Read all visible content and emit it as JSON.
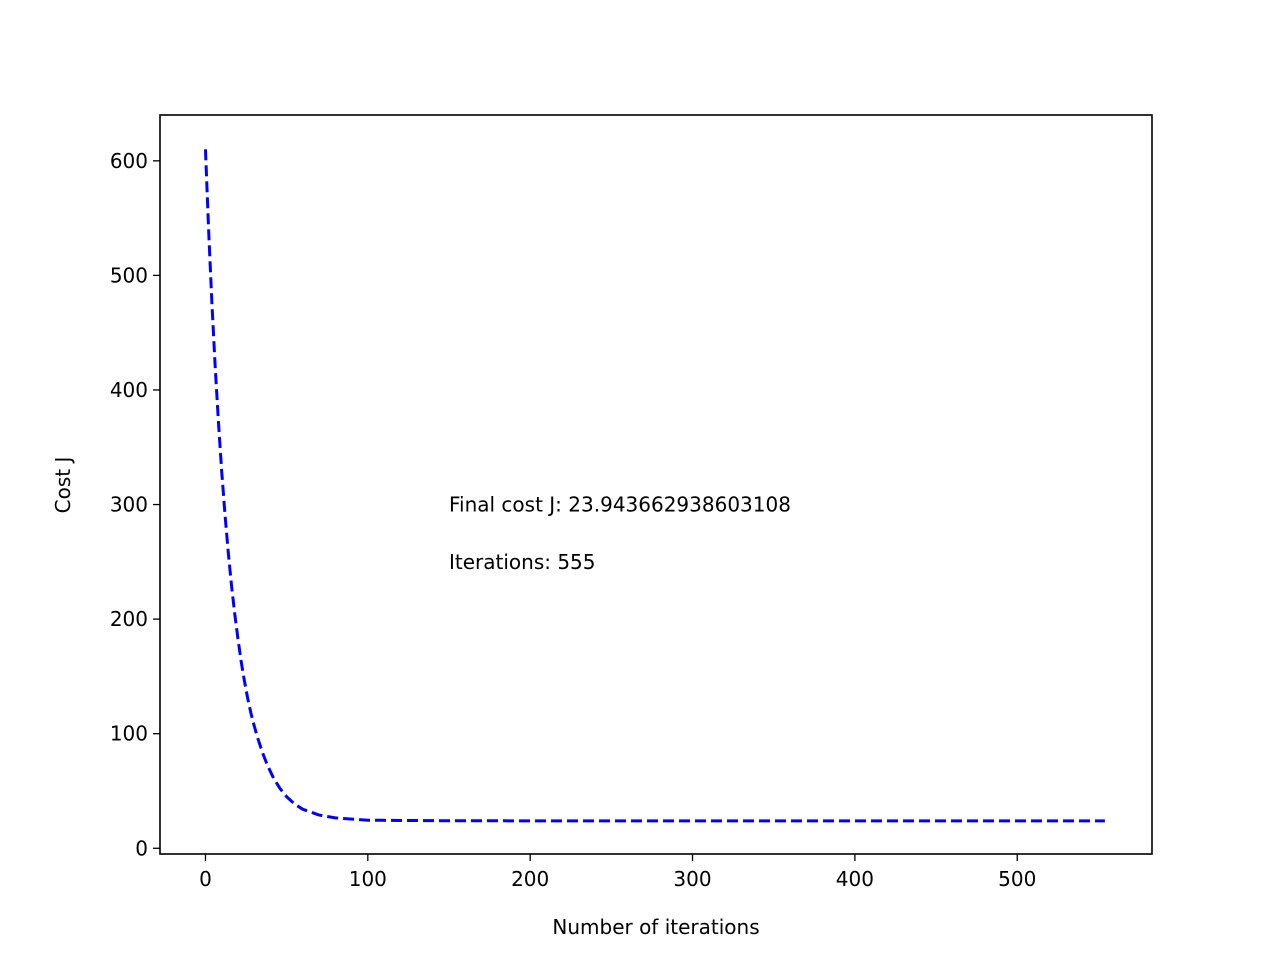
{
  "chart_data": {
    "type": "line",
    "title": "",
    "xlabel": "Number of iterations",
    "ylabel": "Cost J",
    "xlim": [
      -28,
      583
    ],
    "ylim": [
      -5,
      640
    ],
    "xticks": [
      0,
      100,
      200,
      300,
      400,
      500
    ],
    "yticks": [
      0,
      100,
      200,
      300,
      400,
      500,
      600
    ],
    "grid": false,
    "legend": "none",
    "series": [
      {
        "color": "#0000ff",
        "linestyle": "dashed",
        "x": [
          0,
          2,
          4,
          6,
          8,
          10,
          12,
          14,
          16,
          18,
          20,
          22,
          24,
          26,
          28,
          30,
          32,
          35,
          38,
          42,
          46,
          50,
          55,
          60,
          70,
          80,
          100,
          150,
          200,
          250,
          300,
          350,
          400,
          450,
          500,
          554
        ],
        "y": [
          610,
          538,
          475,
          420,
          372,
          329,
          292,
          259,
          230,
          205,
          183,
          163,
          146,
          131,
          118,
          107,
          97,
          84,
          73,
          61,
          52,
          45,
          38.5,
          34,
          29,
          26.5,
          24.5,
          24.0,
          23.95,
          23.94,
          23.94,
          23.94,
          23.94,
          23.94,
          23.94,
          23.94
        ]
      }
    ],
    "annotations": [
      {
        "x": 150,
        "y": 300,
        "text": "Final cost J: 23.943662938603108"
      },
      {
        "x": 150,
        "y": 250,
        "text": "Iterations: 555"
      }
    ]
  }
}
